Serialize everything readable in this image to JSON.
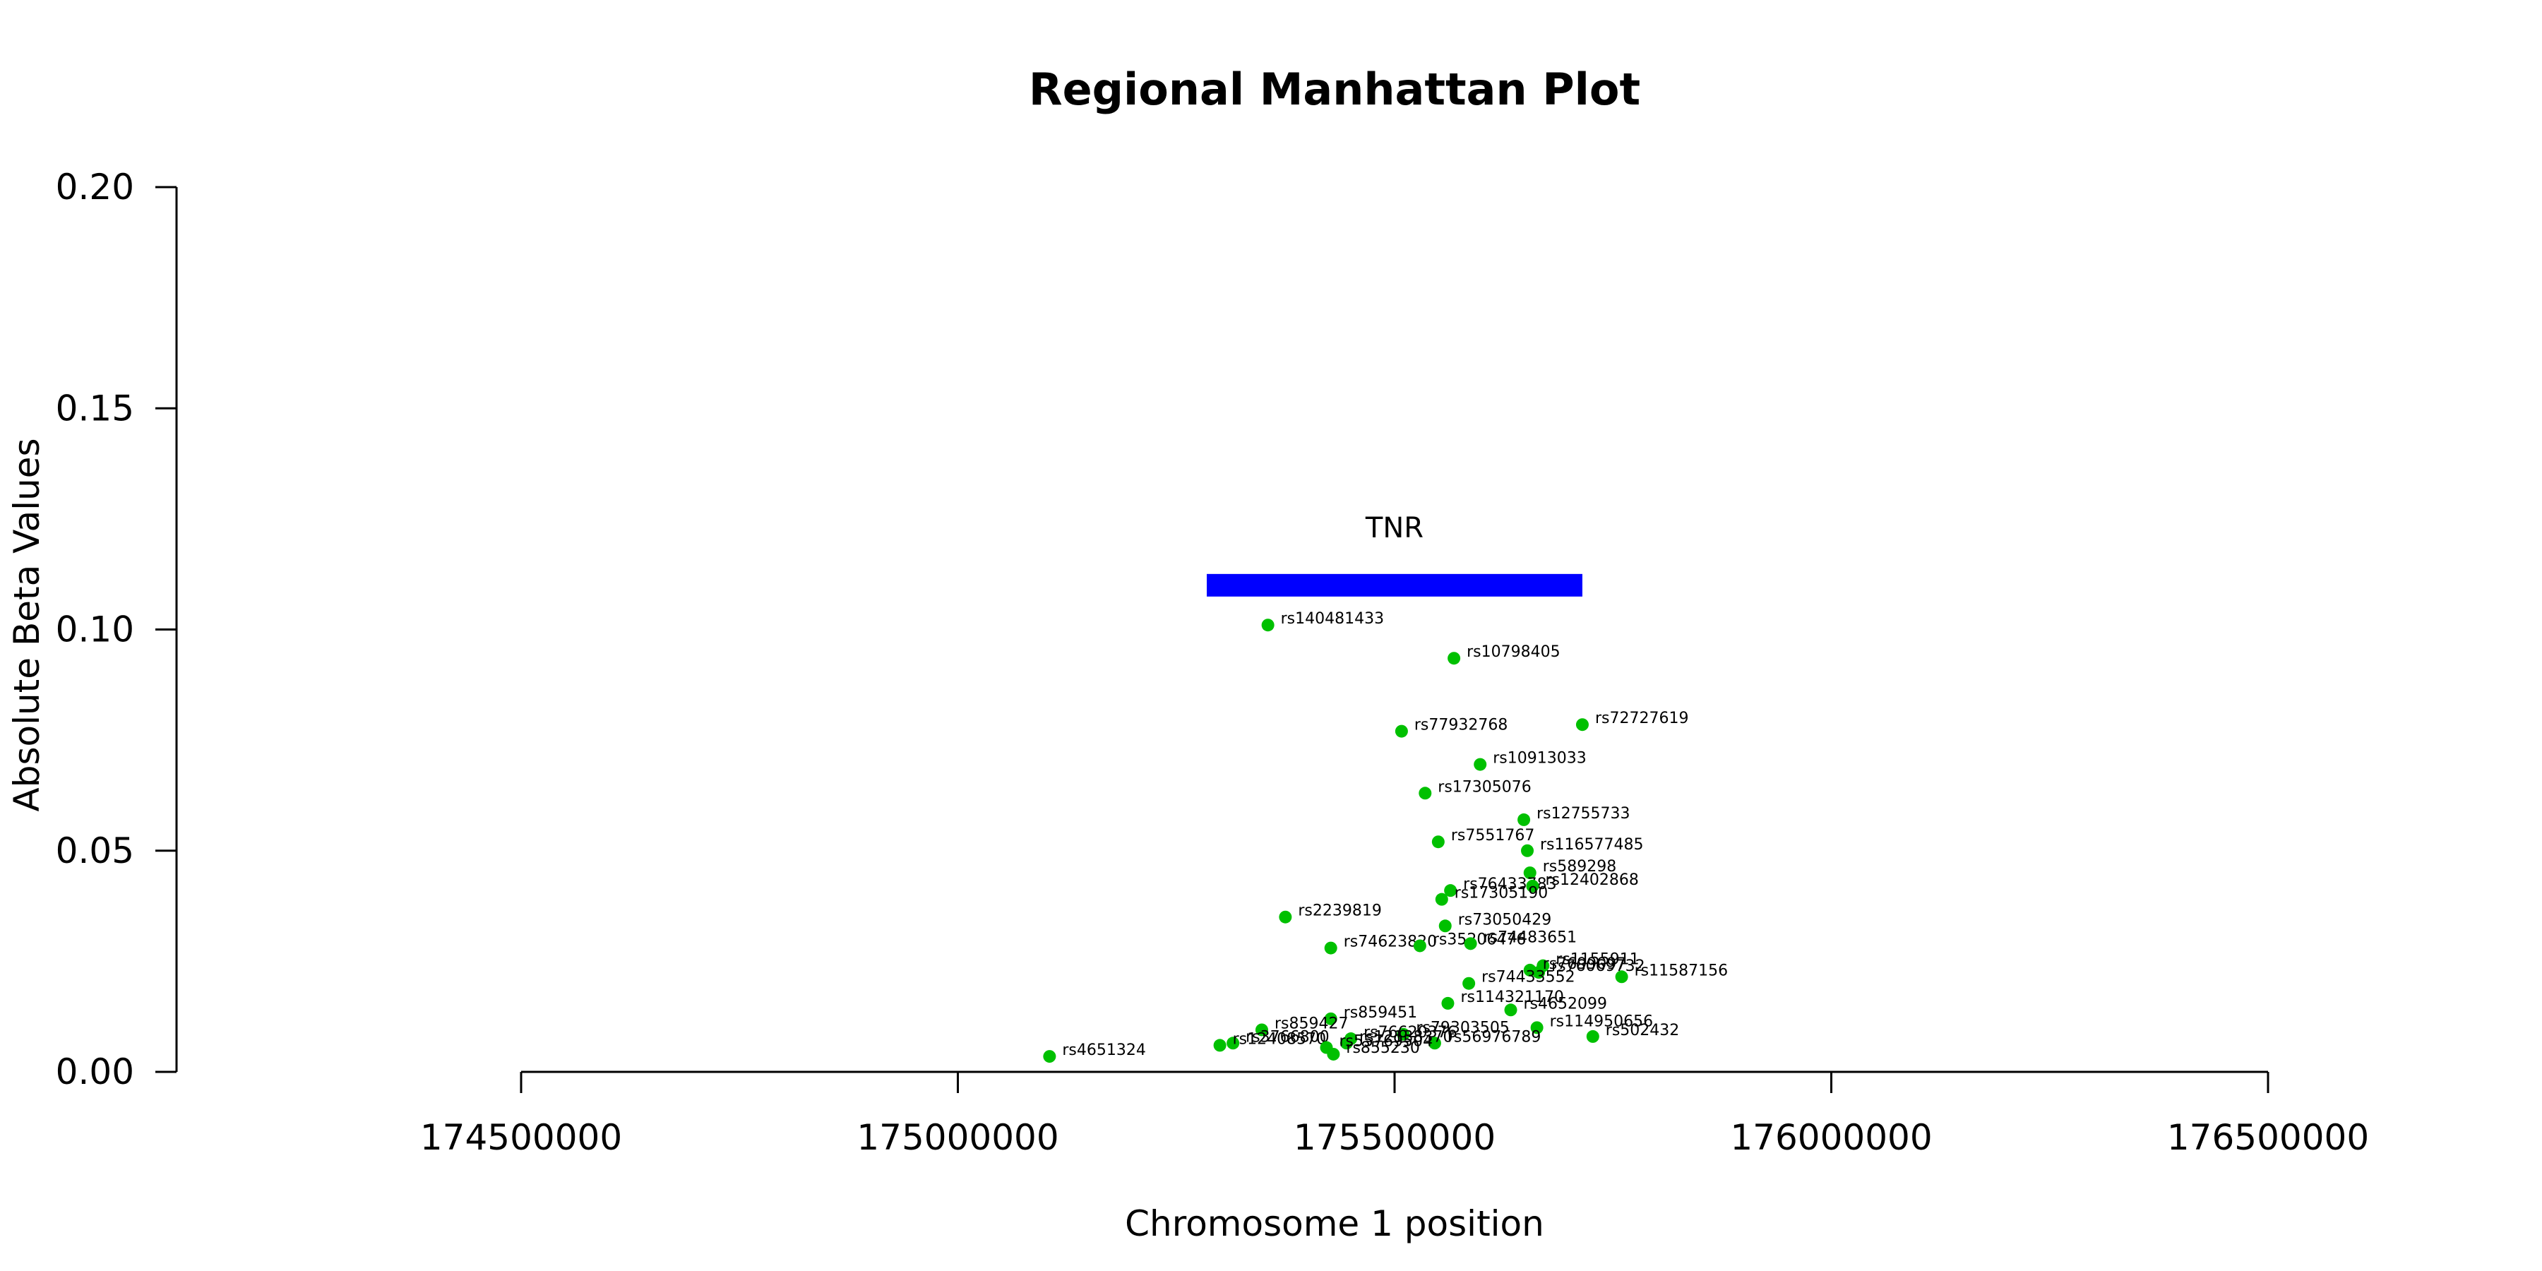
{
  "chart_data": {
    "type": "scatter",
    "title": "Regional Manhattan Plot",
    "xlabel": "Chromosome 1 position",
    "ylabel": "Absolute Beta Values",
    "xlim": [
      174500000,
      176500000
    ],
    "ylim": [
      0,
      0.2
    ],
    "x_ticks": [
      "174500000",
      "175000000",
      "175500000",
      "176000000",
      "176500000"
    ],
    "y_ticks": [
      "0.00",
      "0.05",
      "0.10",
      "0.15",
      "0.20"
    ],
    "grid": false,
    "point_color": "#00c000",
    "gene": {
      "name": "TNR",
      "start": 175285000,
      "end": 175715000,
      "color": "#0000ff",
      "y": 0.11
    },
    "points": [
      {
        "id": "rs140481433",
        "x": 175355000,
        "y": 0.101
      },
      {
        "id": "rs10798405",
        "x": 175568000,
        "y": 0.0935
      },
      {
        "id": "rs77932768",
        "x": 175508000,
        "y": 0.077
      },
      {
        "id": "rs72727619",
        "x": 175715000,
        "y": 0.0785
      },
      {
        "id": "rs10913033",
        "x": 175598000,
        "y": 0.0695
      },
      {
        "id": "rs17305076",
        "x": 175535000,
        "y": 0.063
      },
      {
        "id": "rs12755733",
        "x": 175648000,
        "y": 0.057
      },
      {
        "id": "rs7551767",
        "x": 175550000,
        "y": 0.052
      },
      {
        "id": "rs116577485",
        "x": 175652000,
        "y": 0.05
      },
      {
        "id": "rs589298",
        "x": 175655000,
        "y": 0.045
      },
      {
        "id": "rs76433783",
        "x": 175564000,
        "y": 0.041
      },
      {
        "id": "rs12402868",
        "x": 175658000,
        "y": 0.042
      },
      {
        "id": "rs17305190",
        "x": 175554000,
        "y": 0.039
      },
      {
        "id": "rs2239819",
        "x": 175375000,
        "y": 0.035
      },
      {
        "id": "rs73050429",
        "x": 175558000,
        "y": 0.033
      },
      {
        "id": "rs74623820",
        "x": 175427000,
        "y": 0.028
      },
      {
        "id": "rs35206476",
        "x": 175529000,
        "y": 0.0285
      },
      {
        "id": "rs74483651",
        "x": 175587000,
        "y": 0.029
      },
      {
        "id": "rs1155911",
        "x": 175670000,
        "y": 0.024
      },
      {
        "id": "rs7699097",
        "x": 175655000,
        "y": 0.023
      },
      {
        "id": "rs76069732",
        "x": 175665000,
        "y": 0.0225
      },
      {
        "id": "rs11587156",
        "x": 175760000,
        "y": 0.0215
      },
      {
        "id": "rs74433552",
        "x": 175585000,
        "y": 0.02
      },
      {
        "id": "rs114321170",
        "x": 175561000,
        "y": 0.0155
      },
      {
        "id": "rs4652099",
        "x": 175633000,
        "y": 0.014
      },
      {
        "id": "rs859451",
        "x": 175427000,
        "y": 0.012
      },
      {
        "id": "rs114950656",
        "x": 175663000,
        "y": 0.01
      },
      {
        "id": "rs859427",
        "x": 175348000,
        "y": 0.0095
      },
      {
        "id": "rs79303505",
        "x": 175510000,
        "y": 0.0085
      },
      {
        "id": "rs502432",
        "x": 175727000,
        "y": 0.008
      },
      {
        "id": "rs76620376",
        "x": 175450000,
        "y": 0.0075
      },
      {
        "id": "rs56976789",
        "x": 175546000,
        "y": 0.0065
      },
      {
        "id": "rs12138370",
        "x": 175445000,
        "y": 0.0065
      },
      {
        "id": "rs3766800",
        "x": 175315000,
        "y": 0.0065
      },
      {
        "id": "rs12408570",
        "x": 175300000,
        "y": 0.006
      },
      {
        "id": "rs55769504",
        "x": 175422000,
        "y": 0.0055
      },
      {
        "id": "rs4651324",
        "x": 175105000,
        "y": 0.0035
      },
      {
        "id": "rs855230",
        "x": 175430000,
        "y": 0.004
      }
    ]
  }
}
